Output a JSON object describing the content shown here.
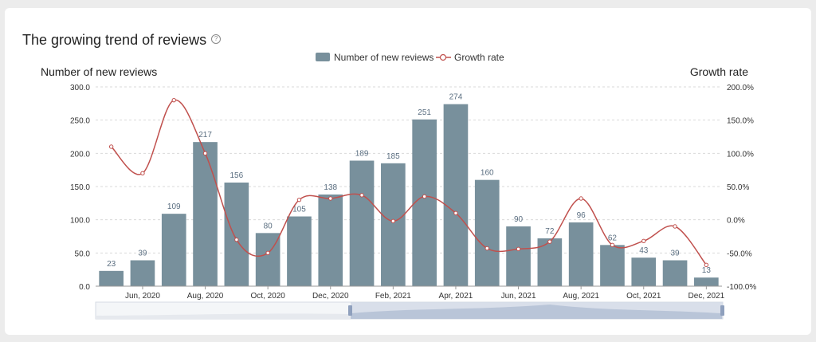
{
  "title": "The growing trend of reviews",
  "icons": {
    "help": "question-circle-icon"
  },
  "colors": {
    "bar": "#78909c",
    "line": "#c0504d",
    "grid": "#d9d9d9",
    "axis_text": "#333333"
  },
  "chart_data": {
    "type": "bar+line",
    "left_axis_label": "Number of new reviews",
    "right_axis_label": "Growth rate",
    "left_ticks": [
      "0.0",
      "50.0",
      "100.0",
      "150.0",
      "200.0",
      "250.0",
      "300.0"
    ],
    "right_ticks": [
      "-100.0%",
      "-50.0%",
      "0.0%",
      "50.0%",
      "100.0%",
      "150.0%",
      "200.0%"
    ],
    "ylim_left": [
      0,
      300
    ],
    "ylim_right": [
      -100,
      200
    ],
    "x_tick_labels": [
      "Jun, 2020",
      "Aug, 2020",
      "Oct, 2020",
      "Dec, 2020",
      "Feb, 2021",
      "Apr, 2021",
      "Jun, 2021",
      "Aug, 2021",
      "Oct, 2021",
      "Dec, 2021"
    ],
    "series": [
      {
        "name": "Number of new reviews",
        "type": "bar",
        "values": [
          23,
          39,
          109,
          217,
          156,
          80,
          105,
          138,
          189,
          185,
          251,
          274,
          160,
          90,
          72,
          96,
          62,
          43,
          39,
          13
        ]
      },
      {
        "name": "Growth rate",
        "type": "line",
        "values": [
          110,
          70,
          180,
          100,
          -30,
          -50,
          30,
          32,
          37,
          -2,
          35,
          10,
          -43,
          -44,
          -33,
          32,
          -38,
          -32,
          -10,
          -68
        ]
      }
    ],
    "legend_position": "top-center",
    "grid": true
  },
  "zoom": {
    "range": [
      0.4,
      1.0
    ]
  }
}
